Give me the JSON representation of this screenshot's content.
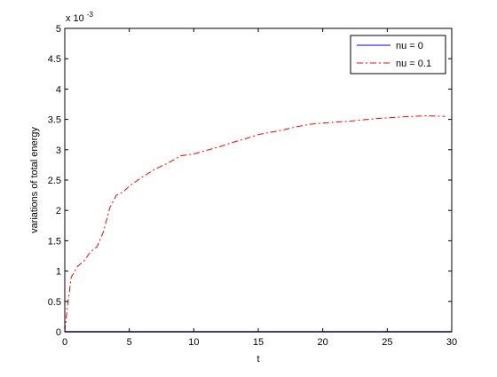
{
  "chart_data": {
    "type": "line",
    "title": "",
    "xlabel": "t",
    "ylabel": "variations of total energy",
    "y_multiplier_label": "x 10",
    "y_multiplier_exponent": "-3",
    "xlim": [
      0,
      30
    ],
    "ylim": [
      0,
      5
    ],
    "xticks": [
      0,
      5,
      10,
      15,
      20,
      25,
      30
    ],
    "yticks": [
      0,
      0.5,
      1,
      1.5,
      2,
      2.5,
      3,
      3.5,
      4,
      4.5,
      5
    ],
    "xtick_labels": [
      "0",
      "5",
      "10",
      "15",
      "20",
      "25",
      "30"
    ],
    "ytick_labels": [
      "0",
      "0.5",
      "1",
      "1.5",
      "2",
      "2.5",
      "3",
      "3.5",
      "4",
      "4.5",
      "5"
    ],
    "grid": false,
    "legend_position": "top-right",
    "series": [
      {
        "name": "nu = 0",
        "color": "#0000ff",
        "line_style": "solid",
        "x": [
          0,
          30
        ],
        "y": [
          0,
          0
        ]
      },
      {
        "name": "nu = 0.1",
        "color": "#ff0000",
        "line_style": "dash-dot",
        "x": [
          0,
          0.2,
          0.5,
          1.0,
          1.5,
          2.0,
          2.5,
          3.0,
          3.5,
          4.0,
          4.5,
          5.0,
          6.0,
          7.0,
          8.0,
          9.0,
          10.0,
          11.0,
          12.0,
          13.0,
          14.0,
          15.0,
          16.0,
          17.0,
          18.0,
          19.0,
          20.0,
          22.0,
          24.0,
          26.0,
          28.0,
          29.5
        ],
        "y": [
          0,
          0.4,
          0.9,
          1.08,
          1.17,
          1.32,
          1.4,
          1.65,
          2.05,
          2.25,
          2.3,
          2.4,
          2.55,
          2.68,
          2.78,
          2.9,
          2.93,
          2.99,
          3.05,
          3.12,
          3.18,
          3.25,
          3.29,
          3.33,
          3.38,
          3.42,
          3.44,
          3.47,
          3.51,
          3.54,
          3.56,
          3.55
        ]
      }
    ]
  }
}
